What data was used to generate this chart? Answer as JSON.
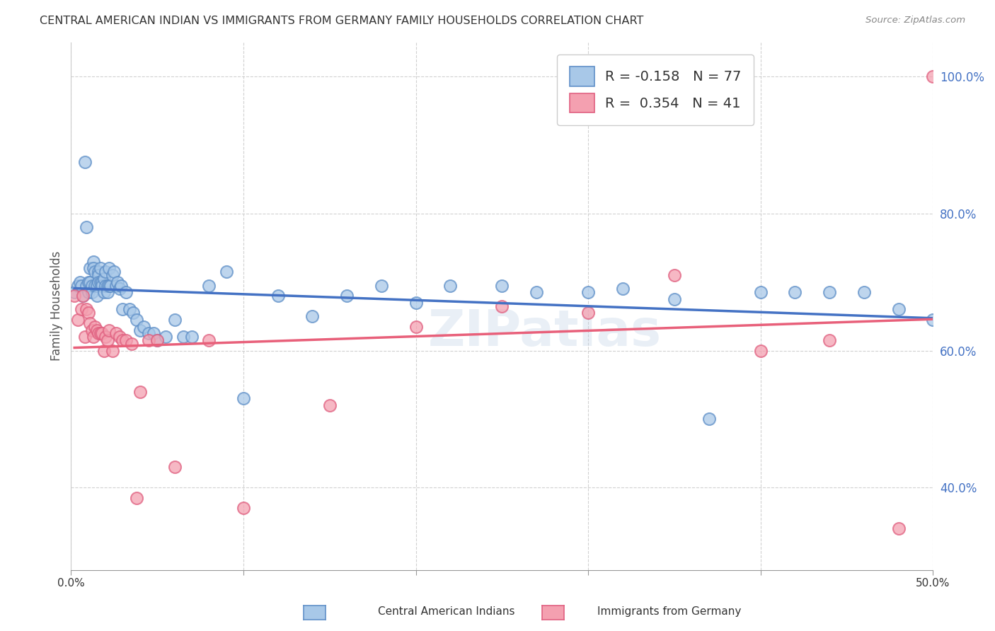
{
  "title": "CENTRAL AMERICAN INDIAN VS IMMIGRANTS FROM GERMANY FAMILY HOUSEHOLDS CORRELATION CHART",
  "source": "Source: ZipAtlas.com",
  "ylabel": "Family Households",
  "xlim": [
    0.0,
    0.5
  ],
  "ylim": [
    0.28,
    1.05
  ],
  "yticks": [
    0.4,
    0.6,
    0.8,
    1.0
  ],
  "ytick_labels": [
    "40.0%",
    "60.0%",
    "80.0%",
    "100.0%"
  ],
  "xticks": [
    0.0,
    0.1,
    0.2,
    0.3,
    0.4,
    0.5
  ],
  "xtick_labels": [
    "0.0%",
    "",
    "",
    "",
    "",
    "50.0%"
  ],
  "R_blue": -0.158,
  "N_blue": 77,
  "R_pink": 0.354,
  "N_pink": 41,
  "color_blue": "#A8C8E8",
  "color_pink": "#F4A0B0",
  "edge_blue": "#6090C8",
  "edge_pink": "#E06080",
  "line_blue": "#4472C4",
  "line_pink": "#E8607A",
  "background": "#FFFFFF",
  "legend_label_blue": "Central American Indians",
  "legend_label_pink": "Immigrants from Germany",
  "blue_x": [
    0.002,
    0.004,
    0.005,
    0.006,
    0.007,
    0.008,
    0.009,
    0.009,
    0.01,
    0.01,
    0.011,
    0.011,
    0.012,
    0.012,
    0.013,
    0.013,
    0.014,
    0.014,
    0.015,
    0.015,
    0.016,
    0.016,
    0.016,
    0.017,
    0.017,
    0.018,
    0.018,
    0.019,
    0.019,
    0.02,
    0.02,
    0.021,
    0.021,
    0.022,
    0.022,
    0.023,
    0.024,
    0.025,
    0.026,
    0.027,
    0.028,
    0.029,
    0.03,
    0.032,
    0.034,
    0.036,
    0.038,
    0.04,
    0.042,
    0.045,
    0.048,
    0.05,
    0.055,
    0.06,
    0.065,
    0.07,
    0.08,
    0.09,
    0.1,
    0.12,
    0.14,
    0.16,
    0.18,
    0.2,
    0.22,
    0.25,
    0.27,
    0.3,
    0.32,
    0.35,
    0.37,
    0.4,
    0.42,
    0.44,
    0.46,
    0.48,
    0.5
  ],
  "blue_y": [
    0.685,
    0.695,
    0.7,
    0.695,
    0.68,
    0.875,
    0.78,
    0.695,
    0.7,
    0.685,
    0.72,
    0.7,
    0.695,
    0.685,
    0.73,
    0.72,
    0.715,
    0.695,
    0.695,
    0.68,
    0.715,
    0.71,
    0.7,
    0.72,
    0.7,
    0.7,
    0.695,
    0.705,
    0.685,
    0.715,
    0.695,
    0.695,
    0.685,
    0.72,
    0.695,
    0.695,
    0.71,
    0.715,
    0.695,
    0.7,
    0.69,
    0.695,
    0.66,
    0.685,
    0.66,
    0.655,
    0.645,
    0.63,
    0.635,
    0.625,
    0.625,
    0.615,
    0.62,
    0.645,
    0.62,
    0.62,
    0.695,
    0.715,
    0.53,
    0.68,
    0.65,
    0.68,
    0.695,
    0.67,
    0.695,
    0.695,
    0.685,
    0.685,
    0.69,
    0.675,
    0.5,
    0.685,
    0.685,
    0.685,
    0.685,
    0.66,
    0.645
  ],
  "pink_x": [
    0.002,
    0.004,
    0.006,
    0.007,
    0.008,
    0.009,
    0.01,
    0.011,
    0.012,
    0.013,
    0.014,
    0.015,
    0.016,
    0.017,
    0.018,
    0.019,
    0.02,
    0.021,
    0.022,
    0.024,
    0.026,
    0.028,
    0.03,
    0.032,
    0.035,
    0.038,
    0.04,
    0.045,
    0.05,
    0.06,
    0.08,
    0.1,
    0.15,
    0.2,
    0.25,
    0.3,
    0.35,
    0.4,
    0.44,
    0.48,
    0.5
  ],
  "pink_y": [
    0.68,
    0.645,
    0.66,
    0.68,
    0.62,
    0.66,
    0.655,
    0.64,
    0.63,
    0.62,
    0.635,
    0.63,
    0.625,
    0.625,
    0.625,
    0.6,
    0.62,
    0.615,
    0.63,
    0.6,
    0.625,
    0.62,
    0.615,
    0.615,
    0.61,
    0.385,
    0.54,
    0.615,
    0.615,
    0.43,
    0.615,
    0.37,
    0.52,
    0.635,
    0.665,
    0.655,
    0.71,
    0.6,
    0.615,
    0.34,
    1.0
  ]
}
